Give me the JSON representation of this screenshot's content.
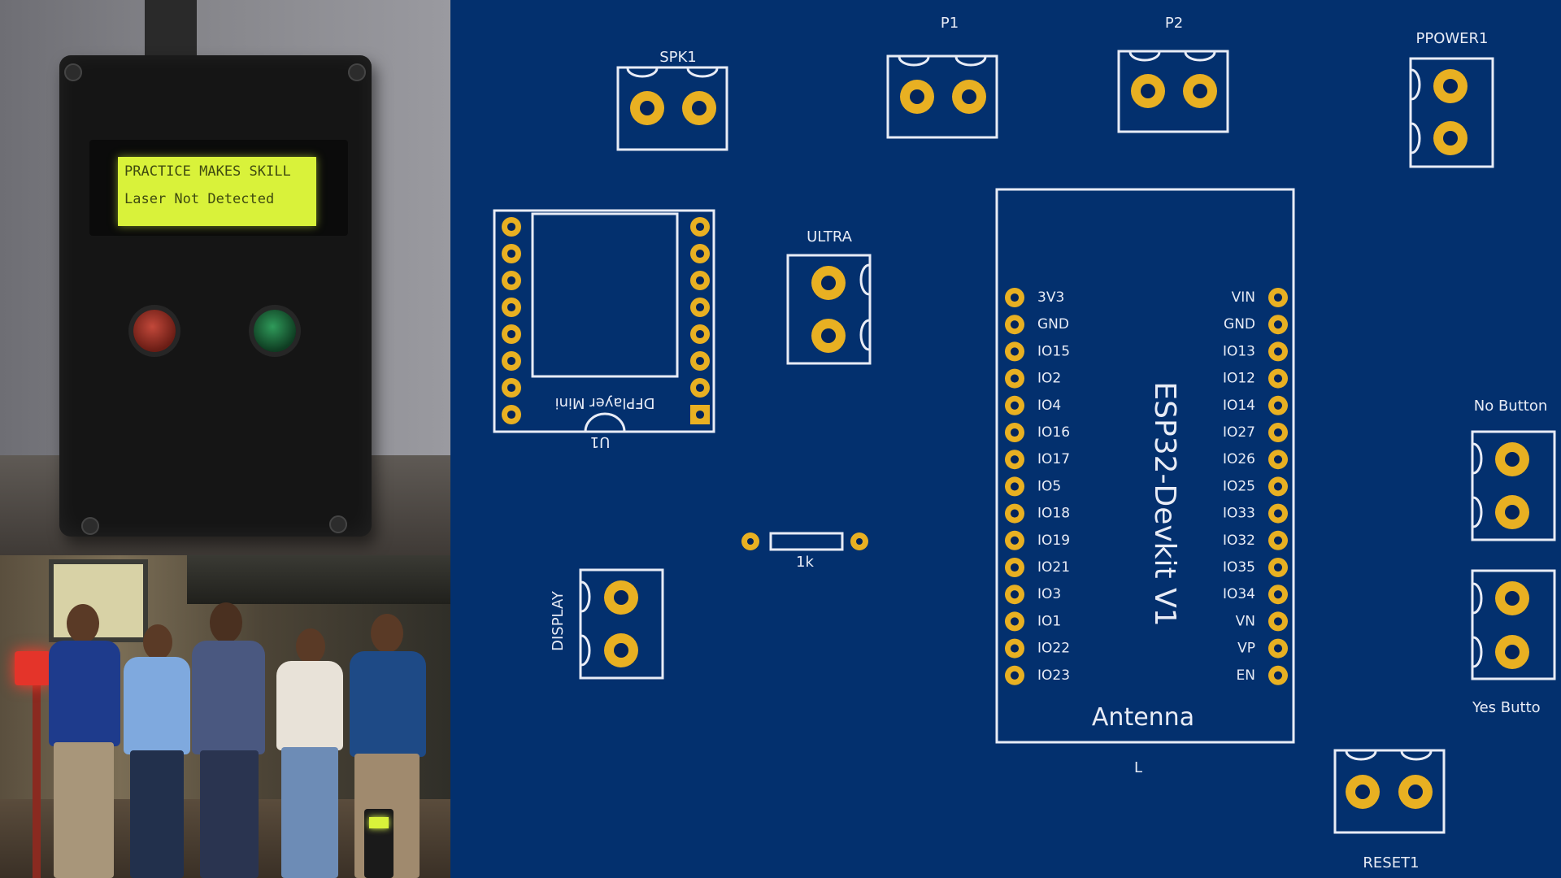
{
  "photo_device": {
    "lcd_line1": "PRACTICE MAKES SKILL",
    "lcd_line2": "Laser Not Detected"
  },
  "pcb": {
    "components": {
      "spk1": "SPK1",
      "p1": "P1",
      "p2": "P2",
      "ppower1": "PPOWER1",
      "ultra": "ULTRA",
      "display": "DISPLAY",
      "no_button": "No Button",
      "yes_button": "Yes Butto",
      "reset1": "RESET1",
      "resistor": "1k",
      "u1": "U1",
      "dfplayer": "DFPlayer Mini",
      "esp32_title": "ESP32-Devkit V1",
      "antenna": "Antenna",
      "esp32_ref": "L"
    },
    "esp32_left_pins": [
      "3V3",
      "GND",
      "IO15",
      "IO2",
      "IO4",
      "IO16",
      "IO17",
      "IO5",
      "IO18",
      "IO19",
      "IO21",
      "IO3",
      "IO1",
      "IO22",
      "IO23"
    ],
    "esp32_right_pins": [
      "VIN",
      "GND",
      "IO13",
      "IO12",
      "IO14",
      "IO27",
      "IO26",
      "IO25",
      "IO33",
      "IO32",
      "IO35",
      "IO34",
      "VN",
      "VP",
      "EN"
    ],
    "colors": {
      "board": "#03306e",
      "silkscreen": "#e8ecf6",
      "pad": "#e8b022"
    }
  }
}
